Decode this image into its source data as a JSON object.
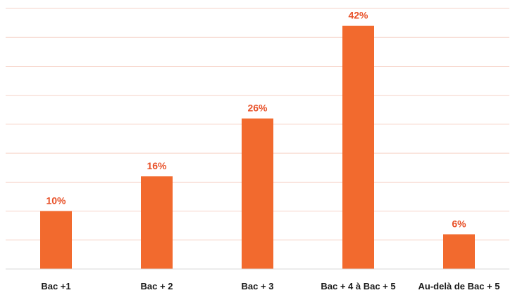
{
  "chart_data": {
    "type": "bar",
    "categories": [
      "Bac +1",
      "Bac + 2",
      "Bac + 3",
      "Bac + 4 à Bac + 5",
      "Au-delà de Bac + 5"
    ],
    "values": [
      10,
      16,
      26,
      42,
      6
    ],
    "data_labels": [
      "10%",
      "16%",
      "26%",
      "42%",
      "6%"
    ],
    "ylim": [
      0,
      45
    ],
    "grid": true,
    "legend": "none",
    "colors": {
      "bar": "#F26A2E",
      "label": "#E8522A",
      "grid": "#F6D3C8",
      "axis": "#D9D9D9"
    }
  }
}
